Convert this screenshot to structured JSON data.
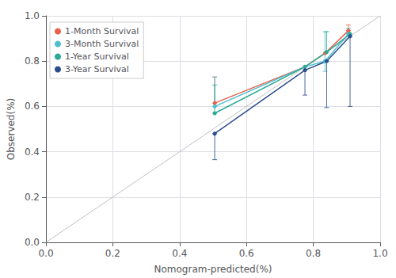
{
  "chart_data": {
    "type": "line",
    "xlabel": "Nomogram-predicted(%)",
    "ylabel": "Observed(%)",
    "xlim": [
      0.0,
      1.0
    ],
    "ylim": [
      0.0,
      1.0
    ],
    "xticks": [
      {
        "value": 0.0,
        "label": "0.0"
      },
      0.2,
      0.4,
      0.6,
      0.8,
      {
        "value": 1.0,
        "label": "1.0"
      }
    ],
    "yticks": [
      {
        "value": 0.0,
        "label": "0.0"
      },
      0.2,
      0.4,
      0.6,
      0.8,
      {
        "value": 1.0,
        "label": "1.0"
      }
    ],
    "grid": true,
    "legend": "upper left",
    "marker": "circle",
    "reference_line": {
      "x": [
        0.0,
        1.0
      ],
      "y": [
        0.0,
        1.0
      ],
      "color": "#c0c0c0"
    },
    "series": [
      {
        "name": "1-Month Survival",
        "color": "#e8604c",
        "x": [
          0.505,
          0.775,
          0.835,
          0.905
        ],
        "values": [
          0.615,
          0.775,
          0.835,
          0.935
        ],
        "yerr_lo": [
          0.0,
          0.0,
          0.0,
          0.0
        ],
        "yerr_hi": [
          0.115,
          0.0,
          0.0,
          0.025
        ]
      },
      {
        "name": "3-Month Survival",
        "color": "#4bbfcf",
        "x": [
          0.505,
          0.775,
          0.835,
          0.905
        ],
        "values": [
          0.6,
          0.775,
          0.8,
          0.92
        ],
        "yerr_lo": [
          0.0,
          0.0,
          0.045,
          0.0
        ],
        "yerr_hi": [
          0.13,
          0.0,
          0.13,
          0.025
        ]
      },
      {
        "name": "1-Year Survival",
        "color": "#2aaa96",
        "x": [
          0.505,
          0.775,
          0.84,
          0.91
        ],
        "values": [
          0.57,
          0.775,
          0.84,
          0.92
        ],
        "yerr_lo": [
          0.0,
          0.0,
          0.0,
          0.0
        ],
        "yerr_hi": [
          0.125,
          0.0,
          0.09,
          0.0
        ]
      },
      {
        "name": "3-Year Survival",
        "color": "#2b4d8e",
        "x": [
          0.505,
          0.775,
          0.84,
          0.91
        ],
        "values": [
          0.48,
          0.76,
          0.8,
          0.91
        ],
        "yerr_lo": [
          0.115,
          0.11,
          0.205,
          0.31
        ],
        "yerr_hi": [
          0.0,
          0.0,
          0.0,
          0.0
        ]
      }
    ]
  }
}
